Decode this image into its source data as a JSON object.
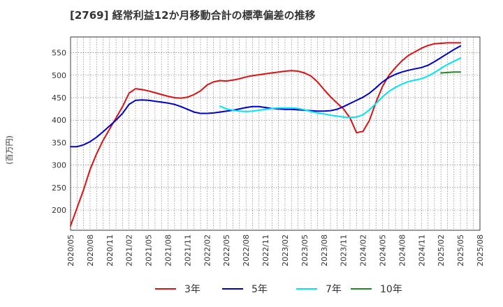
{
  "chart_data": {
    "type": "line",
    "title": "[2769]  経常利益12か月移動合計の標準偏差の推移",
    "ylabel": "(百万円)",
    "xlabel": "",
    "ylim": [
      155,
      585
    ],
    "y_ticks": [
      200,
      250,
      300,
      350,
      400,
      450,
      500,
      550
    ],
    "x_ticks": [
      "2020/05",
      "2020/08",
      "2020/11",
      "2021/02",
      "2021/05",
      "2021/08",
      "2021/11",
      "2022/02",
      "2022/05",
      "2022/08",
      "2022/11",
      "2023/02",
      "2023/05",
      "2023/08",
      "2023/11",
      "2024/02",
      "2024/05",
      "2024/08",
      "2024/11",
      "2025/02",
      "2025/05",
      "2025/08"
    ],
    "grid": true,
    "legend_position": "bottom",
    "series": [
      {
        "name": "3年",
        "color": "#dd1111",
        "points": [
          [
            "2020/05",
            165
          ],
          [
            "2020/06",
            205
          ],
          [
            "2020/07",
            245
          ],
          [
            "2020/08",
            290
          ],
          [
            "2020/09",
            325
          ],
          [
            "2020/10",
            355
          ],
          [
            "2020/11",
            380
          ],
          [
            "2020/12",
            405
          ],
          [
            "2021/01",
            430
          ],
          [
            "2021/02",
            460
          ],
          [
            "2021/03",
            470
          ],
          [
            "2021/04",
            468
          ],
          [
            "2021/05",
            465
          ],
          [
            "2021/06",
            461
          ],
          [
            "2021/07",
            457
          ],
          [
            "2021/08",
            453
          ],
          [
            "2021/09",
            450
          ],
          [
            "2021/10",
            449
          ],
          [
            "2021/11",
            451
          ],
          [
            "2021/12",
            457
          ],
          [
            "2022/01",
            465
          ],
          [
            "2022/02",
            478
          ],
          [
            "2022/03",
            485
          ],
          [
            "2022/04",
            488
          ],
          [
            "2022/05",
            487
          ],
          [
            "2022/06",
            489
          ],
          [
            "2022/07",
            492
          ],
          [
            "2022/08",
            496
          ],
          [
            "2022/09",
            499
          ],
          [
            "2022/10",
            501
          ],
          [
            "2022/11",
            503
          ],
          [
            "2022/12",
            505
          ],
          [
            "2023/01",
            507
          ],
          [
            "2023/02",
            509
          ],
          [
            "2023/03",
            510
          ],
          [
            "2023/04",
            509
          ],
          [
            "2023/05",
            505
          ],
          [
            "2023/06",
            498
          ],
          [
            "2023/07",
            485
          ],
          [
            "2023/08",
            468
          ],
          [
            "2023/09",
            452
          ],
          [
            "2023/10",
            438
          ],
          [
            "2023/11",
            425
          ],
          [
            "2023/12",
            405
          ],
          [
            "2024/01",
            372
          ],
          [
            "2024/02",
            375
          ],
          [
            "2024/03",
            400
          ],
          [
            "2024/04",
            440
          ],
          [
            "2024/05",
            475
          ],
          [
            "2024/06",
            500
          ],
          [
            "2024/07",
            517
          ],
          [
            "2024/08",
            532
          ],
          [
            "2024/09",
            544
          ],
          [
            "2024/10",
            552
          ],
          [
            "2024/11",
            560
          ],
          [
            "2024/12",
            566
          ],
          [
            "2025/01",
            570
          ],
          [
            "2025/02",
            571
          ],
          [
            "2025/03",
            572
          ],
          [
            "2025/04",
            572
          ],
          [
            "2025/05",
            572
          ]
        ]
      },
      {
        "name": "5年",
        "color": "#0000cc",
        "points": [
          [
            "2020/05",
            341
          ],
          [
            "2020/06",
            341
          ],
          [
            "2020/07",
            345
          ],
          [
            "2020/08",
            352
          ],
          [
            "2020/09",
            362
          ],
          [
            "2020/10",
            374
          ],
          [
            "2020/11",
            387
          ],
          [
            "2020/12",
            400
          ],
          [
            "2021/01",
            415
          ],
          [
            "2021/02",
            435
          ],
          [
            "2021/03",
            444
          ],
          [
            "2021/04",
            445
          ],
          [
            "2021/05",
            444
          ],
          [
            "2021/06",
            442
          ],
          [
            "2021/07",
            440
          ],
          [
            "2021/08",
            438
          ],
          [
            "2021/09",
            435
          ],
          [
            "2021/10",
            430
          ],
          [
            "2021/11",
            424
          ],
          [
            "2021/12",
            418
          ],
          [
            "2022/01",
            415
          ],
          [
            "2022/02",
            415
          ],
          [
            "2022/03",
            416
          ],
          [
            "2022/04",
            418
          ],
          [
            "2022/05",
            420
          ],
          [
            "2022/06",
            422
          ],
          [
            "2022/07",
            425
          ],
          [
            "2022/08",
            428
          ],
          [
            "2022/09",
            430
          ],
          [
            "2022/10",
            430
          ],
          [
            "2022/11",
            428
          ],
          [
            "2022/12",
            426
          ],
          [
            "2023/01",
            425
          ],
          [
            "2023/02",
            424
          ],
          [
            "2023/03",
            424
          ],
          [
            "2023/04",
            423
          ],
          [
            "2023/05",
            422
          ],
          [
            "2023/06",
            421
          ],
          [
            "2023/07",
            420
          ],
          [
            "2023/08",
            420
          ],
          [
            "2023/09",
            421
          ],
          [
            "2023/10",
            424
          ],
          [
            "2023/11",
            430
          ],
          [
            "2023/12",
            437
          ],
          [
            "2024/01",
            444
          ],
          [
            "2024/02",
            451
          ],
          [
            "2024/03",
            460
          ],
          [
            "2024/04",
            472
          ],
          [
            "2024/05",
            485
          ],
          [
            "2024/06",
            495
          ],
          [
            "2024/07",
            502
          ],
          [
            "2024/08",
            507
          ],
          [
            "2024/09",
            511
          ],
          [
            "2024/10",
            514
          ],
          [
            "2024/11",
            517
          ],
          [
            "2024/12",
            522
          ],
          [
            "2025/01",
            530
          ],
          [
            "2025/02",
            539
          ],
          [
            "2025/03",
            548
          ],
          [
            "2025/04",
            557
          ],
          [
            "2025/05",
            565
          ]
        ]
      },
      {
        "name": "7年",
        "color": "#00e5ee",
        "points": [
          [
            "2022/04",
            431
          ],
          [
            "2022/05",
            425
          ],
          [
            "2022/06",
            422
          ],
          [
            "2022/07",
            420
          ],
          [
            "2022/08",
            419
          ],
          [
            "2022/09",
            420
          ],
          [
            "2022/10",
            422
          ],
          [
            "2022/11",
            424
          ],
          [
            "2022/12",
            426
          ],
          [
            "2023/01",
            427
          ],
          [
            "2023/02",
            427
          ],
          [
            "2023/03",
            427
          ],
          [
            "2023/04",
            426
          ],
          [
            "2023/05",
            423
          ],
          [
            "2023/06",
            419
          ],
          [
            "2023/07",
            416
          ],
          [
            "2023/08",
            414
          ],
          [
            "2023/09",
            411
          ],
          [
            "2023/10",
            409
          ],
          [
            "2023/11",
            407
          ],
          [
            "2023/12",
            406
          ],
          [
            "2024/01",
            407
          ],
          [
            "2024/02",
            412
          ],
          [
            "2024/03",
            423
          ],
          [
            "2024/04",
            437
          ],
          [
            "2024/05",
            452
          ],
          [
            "2024/06",
            464
          ],
          [
            "2024/07",
            473
          ],
          [
            "2024/08",
            480
          ],
          [
            "2024/09",
            486
          ],
          [
            "2024/10",
            489
          ],
          [
            "2024/11",
            492
          ],
          [
            "2024/12",
            498
          ],
          [
            "2025/01",
            506
          ],
          [
            "2025/02",
            515
          ],
          [
            "2025/03",
            524
          ],
          [
            "2025/04",
            531
          ],
          [
            "2025/05",
            538
          ]
        ]
      },
      {
        "name": "10年",
        "color": "#228822",
        "points": [
          [
            "2025/02",
            505
          ],
          [
            "2025/03",
            506
          ],
          [
            "2025/04",
            507
          ],
          [
            "2025/05",
            507
          ]
        ]
      }
    ]
  }
}
